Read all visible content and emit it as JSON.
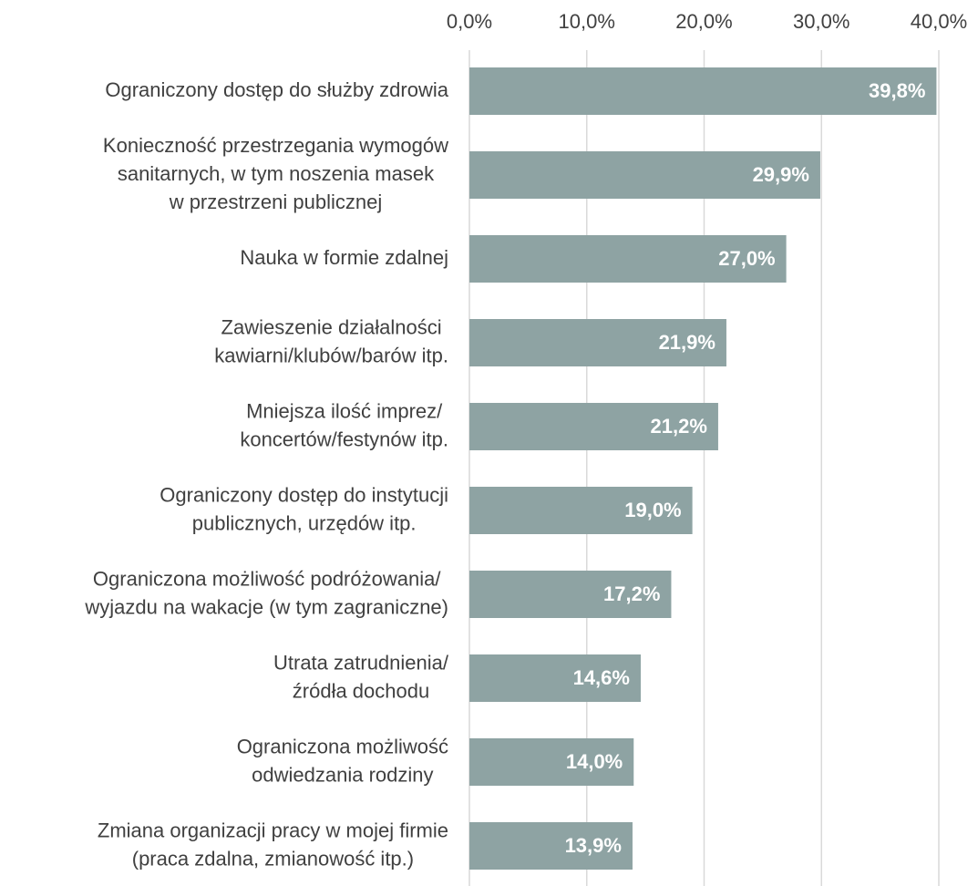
{
  "chart_data": {
    "type": "barh",
    "categories": [
      [
        "Ograniczony dostęp do służby zdrowia"
      ],
      [
        "Konieczność przestrzegania wymogów",
        "sanitarnych, w tym noszenia masek",
        "w przestrzeni publicznej"
      ],
      [
        "Nauka w formie zdalnej"
      ],
      [
        "Zawieszenie działalności",
        "kawiarni/klubów/barów itp."
      ],
      [
        "Mniejsza ilość imprez/",
        "koncertów/festynów itp."
      ],
      [
        "Ograniczony dostęp do instytucji",
        "publicznych, urzędów itp."
      ],
      [
        "Ograniczona możliwość podróżowania/",
        "wyjazdu na wakacje (w tym zagraniczne)"
      ],
      [
        "Utrata zatrudnienia/",
        "źródła dochodu"
      ],
      [
        "Ograniczona możliwość",
        "odwiedzania rodziny"
      ],
      [
        "Zmiana organizacji pracy w mojej firmie",
        "(praca zdalna, zmianowość itp.)"
      ]
    ],
    "values": [
      39.8,
      29.9,
      27.0,
      21.9,
      21.2,
      19.0,
      17.2,
      14.6,
      14.0,
      13.9
    ],
    "value_labels": [
      "39,8%",
      "29,9%",
      "27,0%",
      "21,9%",
      "21,2%",
      "19,0%",
      "17,2%",
      "14,6%",
      "14,0%",
      "13,9%"
    ],
    "color": "#8ea3a3",
    "xlim": [
      0,
      40
    ],
    "xticks": [
      {
        "value": 0,
        "label": "0,0%"
      },
      {
        "value": 10,
        "label": "10,0%"
      },
      {
        "value": 20,
        "label": "20,0%"
      },
      {
        "value": 30,
        "label": "30,0%"
      },
      {
        "value": 40,
        "label": "40,0%"
      }
    ],
    "grid": true
  }
}
